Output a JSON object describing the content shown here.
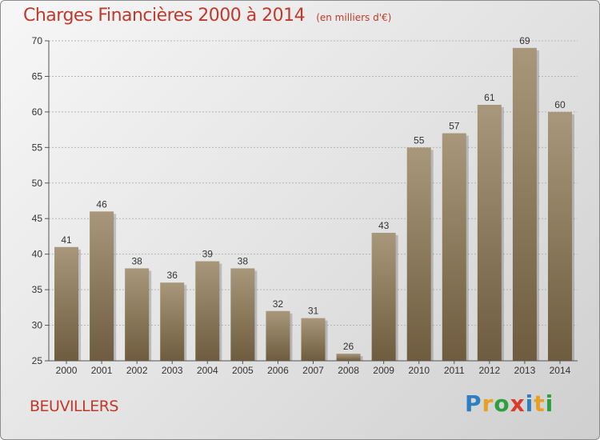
{
  "header": {
    "title": "Charges Financières 2000 à 2014",
    "subtitle": "(en milliers d'€)"
  },
  "footer": {
    "commune": "BEUVILLERS",
    "logo_letters": [
      "P",
      "r",
      "o",
      "x",
      "i",
      "t",
      "i"
    ],
    "logo_colors": [
      "#2e7fc2",
      "#e8a020",
      "#2e9f3e",
      "#d93a2b",
      "#2e7fc2",
      "#e8a020",
      "#2e9f3e"
    ]
  },
  "colors": {
    "bar_top": "#a8977a",
    "bar_bottom": "#6f5c3f",
    "grid": "#b5b5b5",
    "axis_text": "#333333",
    "title": "#c0392b"
  },
  "chart_data": {
    "type": "bar",
    "title": "Charges Financières 2000 à 2014",
    "subtitle": "(en milliers d'€)",
    "categories": [
      "2000",
      "2001",
      "2002",
      "2003",
      "2004",
      "2005",
      "2006",
      "2007",
      "2008",
      "2009",
      "2010",
      "2011",
      "2012",
      "2013",
      "2014"
    ],
    "values": [
      41,
      46,
      38,
      36,
      39,
      38,
      32,
      31,
      26,
      43,
      55,
      57,
      61,
      69,
      60
    ],
    "ylim": [
      25,
      70
    ],
    "yticks": [
      25,
      30,
      35,
      40,
      45,
      50,
      55,
      60,
      65,
      70
    ],
    "grid": true,
    "data_labels": true
  }
}
